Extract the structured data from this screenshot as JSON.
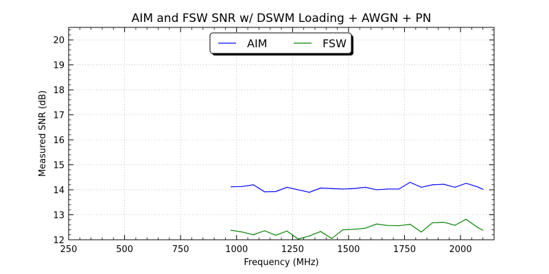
{
  "chart_data": {
    "type": "line",
    "title": "AIM and FSW SNR w/ DSWM Loading + AWGN + PN",
    "xlabel": "Frequency (MHz)",
    "ylabel": "Measured SNR (dB)",
    "xlim": [
      250,
      2150
    ],
    "ylim": [
      12,
      20.5
    ],
    "x_ticks": [
      250,
      500,
      750,
      1000,
      1250,
      1500,
      1750,
      2000
    ],
    "y_ticks": [
      12,
      13,
      14,
      15,
      16,
      17,
      18,
      19,
      20
    ],
    "grid": true,
    "legend_position": "upper-center",
    "x": [
      975,
      1025,
      1075,
      1125,
      1175,
      1225,
      1275,
      1325,
      1375,
      1425,
      1475,
      1525,
      1575,
      1625,
      1675,
      1725,
      1775,
      1825,
      1875,
      1925,
      1975,
      2025,
      2075,
      2100
    ],
    "series": [
      {
        "name": "AIM",
        "color": "#0000ff",
        "values": [
          14.12,
          14.13,
          14.2,
          13.92,
          13.93,
          14.1,
          14.0,
          13.9,
          14.07,
          14.05,
          14.03,
          14.05,
          14.1,
          14.0,
          14.03,
          14.03,
          14.3,
          14.1,
          14.2,
          14.22,
          14.1,
          14.26,
          14.12,
          14.02
        ]
      },
      {
        "name": "FSW",
        "color": "#008000",
        "values": [
          12.38,
          12.31,
          12.2,
          12.36,
          12.18,
          12.35,
          12.03,
          12.15,
          12.33,
          12.05,
          12.4,
          12.42,
          12.46,
          12.63,
          12.57,
          12.56,
          12.62,
          12.31,
          12.68,
          12.7,
          12.58,
          12.82,
          12.5,
          12.38
        ]
      }
    ]
  }
}
